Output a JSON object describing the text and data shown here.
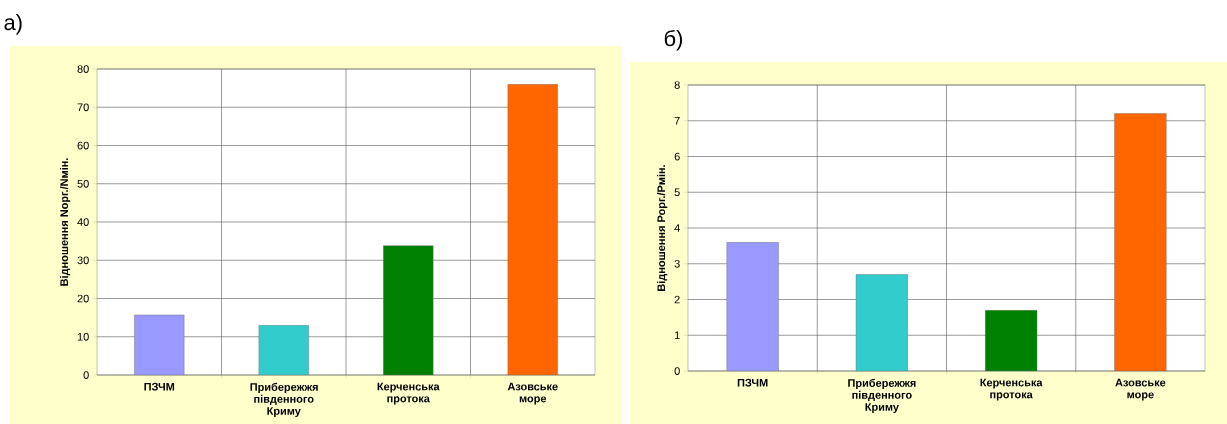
{
  "chart_data": [
    {
      "type": "bar",
      "title": "а)",
      "ylabel": "Відношення Nорг./Nмін.",
      "categories": [
        "ПЗЧМ",
        "Прибережжя південного Криму",
        "Керченська протока",
        "Азовське море"
      ],
      "values": [
        15.7,
        13,
        33.8,
        76
      ],
      "colors": [
        "#9999ff",
        "#33cccc",
        "#008000",
        "#ff6600"
      ],
      "ylim": [
        0,
        80
      ],
      "yticks": [
        0,
        10,
        20,
        30,
        40,
        50,
        60,
        70,
        80
      ],
      "grid": true
    },
    {
      "type": "bar",
      "title": "б)",
      "ylabel": "Відношення Рорг./Рмін.",
      "categories": [
        "ПЗЧМ",
        "Прибережжя південного Криму",
        "Керченська протока",
        "Азовське море"
      ],
      "values": [
        3.6,
        2.7,
        1.7,
        7.2
      ],
      "colors": [
        "#9999ff",
        "#33cccc",
        "#008000",
        "#ff6600"
      ],
      "ylim": [
        0,
        8
      ],
      "yticks": [
        0,
        1,
        2,
        3,
        4,
        5,
        6,
        7,
        8
      ],
      "grid": true
    }
  ]
}
